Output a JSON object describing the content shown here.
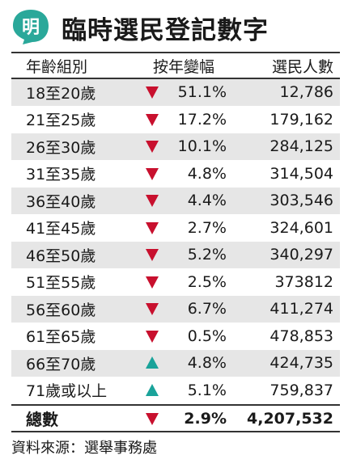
{
  "header": {
    "logo_char": "明",
    "title": "臨時選民登記數字",
    "logo_color": "#2aa89a"
  },
  "table": {
    "columns": [
      "年齡組別",
      "按年變幅",
      "選民人數"
    ],
    "rows": [
      {
        "group": "18至20歲",
        "direction": "down",
        "change": "51.1%",
        "voters": "12,786"
      },
      {
        "group": "21至25歲",
        "direction": "down",
        "change": "17.2%",
        "voters": "179,162"
      },
      {
        "group": "26至30歲",
        "direction": "down",
        "change": "10.1%",
        "voters": "284,125"
      },
      {
        "group": "31至35歲",
        "direction": "down",
        "change": "4.8%",
        "voters": "314,504"
      },
      {
        "group": "36至40歲",
        "direction": "down",
        "change": "4.4%",
        "voters": "303,546"
      },
      {
        "group": "41至45歲",
        "direction": "down",
        "change": "2.7%",
        "voters": "324,601"
      },
      {
        "group": "46至50歲",
        "direction": "down",
        "change": "5.2%",
        "voters": "340,297"
      },
      {
        "group": "51至55歲",
        "direction": "down",
        "change": "2.5%",
        "voters": "373812"
      },
      {
        "group": "56至60歲",
        "direction": "down",
        "change": "6.7%",
        "voters": "411,274"
      },
      {
        "group": "61至65歲",
        "direction": "down",
        "change": "0.5%",
        "voters": "478,853"
      },
      {
        "group": "66至70歲",
        "direction": "up",
        "change": "4.8%",
        "voters": "424,735"
      },
      {
        "group": "71歲或以上",
        "direction": "up",
        "change": "5.1%",
        "voters": "759,837"
      }
    ],
    "total": {
      "label": "總數",
      "direction": "down",
      "change": "2.9%",
      "voters": "4,207,532"
    },
    "colors": {
      "down": "#c8102e",
      "up": "#1aa39a",
      "stripe": "#e6e6e6"
    }
  },
  "source": "資料來源：選舉事務處"
}
